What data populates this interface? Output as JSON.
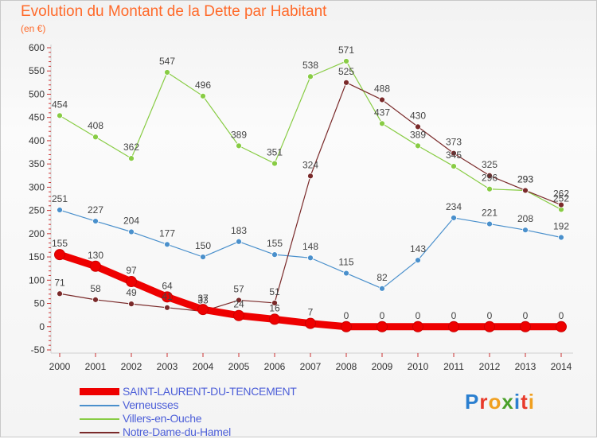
{
  "header": {
    "title": "Evolution du Montant de la Dette par Habitant",
    "subtitle": "(en €)"
  },
  "logo": {
    "text": "Proxiti",
    "colors": [
      "#2a7fd0",
      "#e83a2a",
      "#f0a020",
      "#4aa02a",
      "#2a7fd0",
      "#e83a2a",
      "#f0a020"
    ]
  },
  "chart_data": {
    "type": "line",
    "title": "Evolution du Montant de la Dette par Habitant",
    "subtitle": "(en €)",
    "xlabel": "",
    "ylabel": "",
    "ylim": [
      -50,
      600
    ],
    "yticks": [
      -50,
      0,
      50,
      100,
      150,
      200,
      250,
      300,
      350,
      400,
      450,
      500,
      550,
      600
    ],
    "x": [
      "2000",
      "2001",
      "2002",
      "2003",
      "2004",
      "2005",
      "2006",
      "2007",
      "2008",
      "2009",
      "2010",
      "2011",
      "2012",
      "2013",
      "2014"
    ],
    "grid": false,
    "legend_position": "bottom-left",
    "series": [
      {
        "name": "SAINT-LAURENT-DU-TENCEMENT",
        "color": "#ee0000",
        "bold": true,
        "values": [
          155,
          130,
          97,
          64,
          37,
          24,
          16,
          7,
          0,
          0,
          0,
          0,
          0,
          0,
          0
        ],
        "labels": [
          "155",
          "130",
          "97",
          "64",
          "37",
          "24",
          "16",
          "7",
          "0",
          "0",
          "0",
          "0",
          "0",
          "0",
          "0"
        ]
      },
      {
        "name": "Verneusses",
        "color": "#4a90cc",
        "bold": false,
        "values": [
          251,
          227,
          204,
          177,
          150,
          183,
          155,
          148,
          115,
          82,
          143,
          234,
          221,
          208,
          192
        ],
        "labels": [
          "251",
          "227",
          "204",
          "177",
          "150",
          "183",
          "155",
          "148",
          "115",
          "82",
          "143",
          "234",
          "221",
          "208",
          "192"
        ]
      },
      {
        "name": "Villers-en-Ouche",
        "color": "#88cc44",
        "bold": false,
        "values": [
          454,
          408,
          362,
          547,
          496,
          389,
          351,
          538,
          571,
          437,
          389,
          345,
          296,
          293,
          252
        ],
        "labels": [
          "454",
          "408",
          "362",
          "547",
          "496",
          "389",
          "351",
          "538",
          "571",
          "437",
          "389",
          "345",
          "296",
          "293",
          "252"
        ]
      },
      {
        "name": "Notre-Dame-du-Hamel",
        "color": "#7a2a2a",
        "bold": false,
        "values": [
          71,
          58,
          49,
          41,
          33,
          57,
          51,
          324,
          525,
          488,
          430,
          373,
          325,
          293,
          262
        ],
        "labels": [
          "71",
          "58",
          "49",
          "41",
          "33",
          "57",
          "51",
          "324",
          "525",
          "488",
          "430",
          "373",
          "325",
          "293",
          "262"
        ]
      }
    ]
  }
}
